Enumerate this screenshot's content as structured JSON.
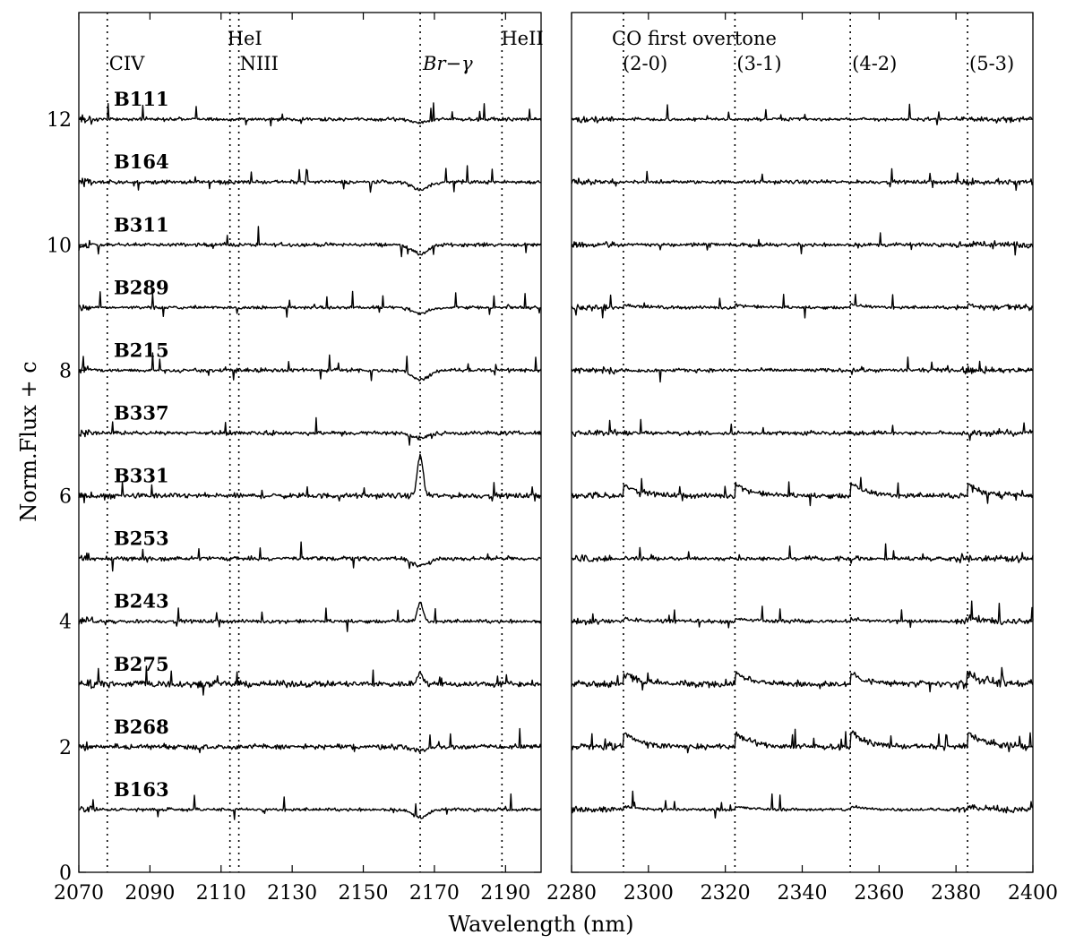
{
  "chart_data": {
    "type": "line",
    "ylabel": "Norm.Flux + c",
    "xlabel": "Wavelength (nm)",
    "ylim": [
      0,
      13.7
    ],
    "yticks": [
      0,
      2,
      4,
      6,
      8,
      10,
      12
    ],
    "panels": [
      {
        "name": "left",
        "xlim": [
          2070,
          2200
        ],
        "xticks": [
          2070,
          2090,
          2110,
          2130,
          2150,
          2170,
          2190
        ],
        "lines": [
          {
            "label": "CIV",
            "x": 2078
          },
          {
            "label": "HeI",
            "x": 2112.5
          },
          {
            "label": "NIII",
            "x": 2115
          },
          {
            "label": "Br−γ",
            "x": 2166
          },
          {
            "label": "HeII",
            "x": 2189
          }
        ]
      },
      {
        "name": "right",
        "xlim": [
          2280,
          2400
        ],
        "xticks": [
          2280,
          2300,
          2320,
          2340,
          2360,
          2380,
          2400
        ],
        "header": "CO first overtone",
        "lines": [
          {
            "label": "(2-0)",
            "x": 2293.5
          },
          {
            "label": "(3-1)",
            "x": 2322.5
          },
          {
            "label": "(4-2)",
            "x": 2352.5
          },
          {
            "label": "(5-3)",
            "x": 2383
          }
        ]
      }
    ],
    "series": [
      {
        "name": "B111",
        "offset": 12,
        "br_gamma": -0.05,
        "noise": 0.03,
        "co": 0.0
      },
      {
        "name": "B164",
        "offset": 11,
        "br_gamma": -0.12,
        "noise": 0.035,
        "co": 0.0
      },
      {
        "name": "B311",
        "offset": 10,
        "br_gamma": -0.15,
        "noise": 0.035,
        "co": 0.0
      },
      {
        "name": "B289",
        "offset": 9,
        "br_gamma": -0.1,
        "noise": 0.03,
        "co": 0.05
      },
      {
        "name": "B215",
        "offset": 8,
        "br_gamma": -0.15,
        "noise": 0.035,
        "co": 0.0
      },
      {
        "name": "B337",
        "offset": 7,
        "br_gamma": -0.08,
        "noise": 0.04,
        "co": 0.0
      },
      {
        "name": "B331",
        "offset": 6,
        "br_gamma": 0.65,
        "noise": 0.05,
        "co": 0.2
      },
      {
        "name": "B253",
        "offset": 5,
        "br_gamma": -0.12,
        "noise": 0.04,
        "co": 0.0
      },
      {
        "name": "B243",
        "offset": 4,
        "br_gamma": 0.3,
        "noise": 0.035,
        "co": 0.05
      },
      {
        "name": "B275",
        "offset": 3,
        "br_gamma": 0.2,
        "noise": 0.06,
        "co": 0.18
      },
      {
        "name": "B268",
        "offset": 2,
        "br_gamma": -0.05,
        "noise": 0.05,
        "co": 0.25
      },
      {
        "name": "B163",
        "offset": 1,
        "br_gamma": -0.12,
        "noise": 0.03,
        "co": 0.05
      }
    ]
  }
}
